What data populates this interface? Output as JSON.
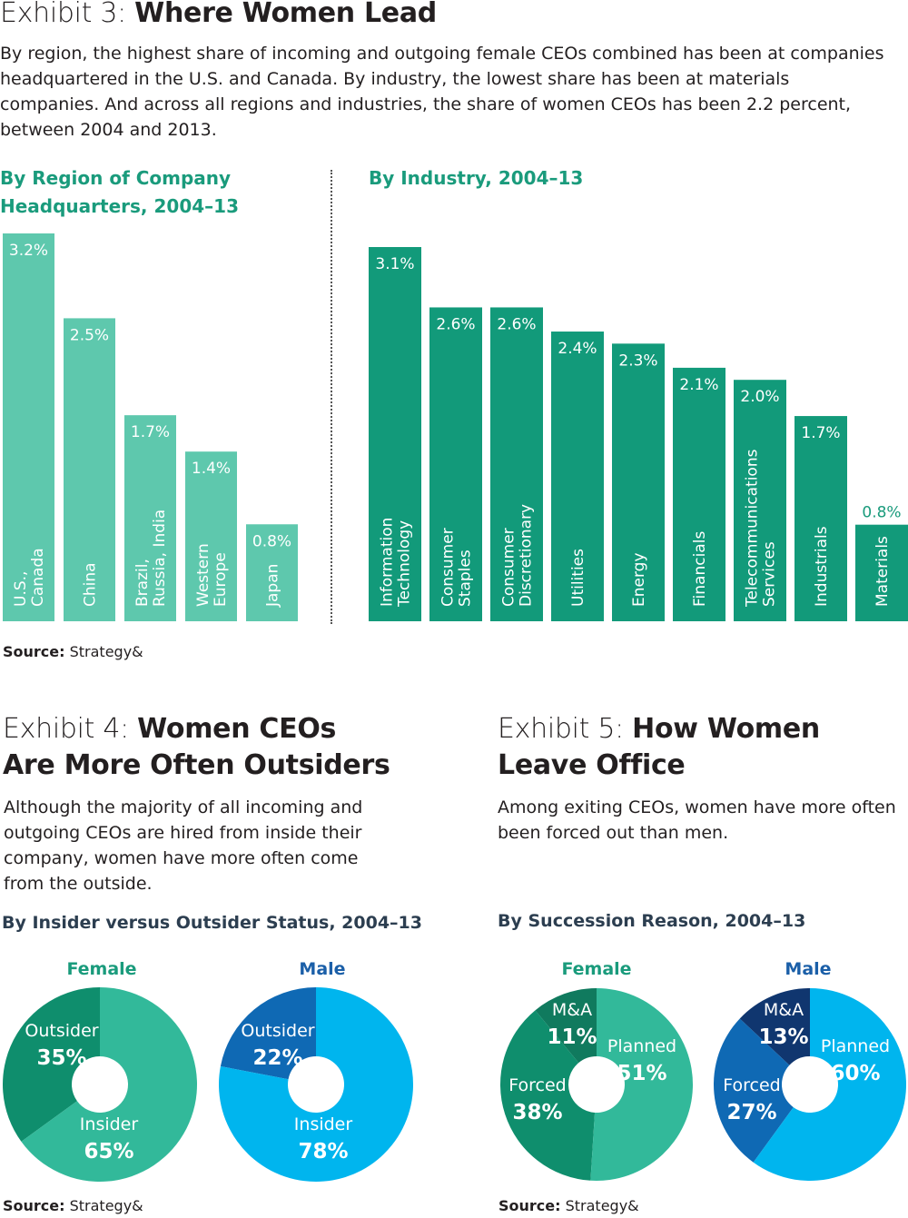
{
  "exhibit3": {
    "prefix": "Exhibit 3: ",
    "title": "Where Women Lead",
    "intro": "By region, the highest share of incoming and outgoing female CEOs combined has been at companies headquartered in the U.S. and Canada. By industry, the lowest share has been at materials companies. And across all regions and industries, the share of women CEOs has been 2.2 percent, between 2004 and 2013.",
    "source_label": "Source:",
    "source_value": " Strategy&"
  },
  "exhibit4": {
    "prefix": "Exhibit 4: ",
    "title_line1": "Women CEOs",
    "title_line2": "Are More Often Outsiders",
    "intro": "Although the majority of all incoming and outgoing CEOs are hired from inside their company, women have more often come from the outside.",
    "source_label": "Source:",
    "source_value": " Strategy&"
  },
  "exhibit5": {
    "prefix": "Exhibit 5: ",
    "title_line1": "How Women",
    "title_line2": "Leave Office",
    "intro": "Among exiting CEOs, women have more often been forced out than men.",
    "source_label": "Source:",
    "source_value": " Strategy&"
  },
  "colors": {
    "region_bar": "#5ec8ad",
    "industry_bar": "#129a7a",
    "female_dark": "#107a5e",
    "female_mid": "#0f8e6d",
    "female_light": "#32b99a",
    "male_navy": "#10366f",
    "male_blue": "#0f69b4",
    "male_light": "#00b5ee",
    "text_teal": "#1a9b7c",
    "text_blue": "#1b5fa8"
  },
  "chart_data": [
    {
      "type": "bar",
      "title_line1": "By Region of Company",
      "title_line2": "Headquarters, 2004–13",
      "categories": [
        [
          "U.S.,",
          "Canada"
        ],
        [
          "China"
        ],
        [
          "Brazil,",
          "Russia, India"
        ],
        [
          "Western",
          "Europe"
        ],
        [
          "Japan"
        ]
      ],
      "values": [
        3.2,
        2.5,
        1.7,
        1.4,
        0.8
      ],
      "value_labels": [
        "3.2%",
        "2.5%",
        "1.7%",
        "1.4%",
        "0.8%"
      ],
      "unit": "%",
      "ylim": [
        0,
        3.2
      ]
    },
    {
      "type": "bar",
      "title": "By Industry, 2004–13",
      "categories": [
        [
          "Information",
          "Technology"
        ],
        [
          "Consumer",
          "Staples"
        ],
        [
          "Consumer",
          "Discretionary"
        ],
        [
          "Utilities"
        ],
        [
          "Energy"
        ],
        [
          "Financials"
        ],
        [
          "Telecommunications",
          "Services"
        ],
        [
          "Industrials"
        ],
        [
          "Materials"
        ]
      ],
      "values": [
        3.1,
        2.6,
        2.6,
        2.4,
        2.3,
        2.1,
        2.0,
        1.7,
        0.8
      ],
      "value_labels": [
        "3.1%",
        "2.6%",
        "2.6%",
        "2.4%",
        "2.3%",
        "2.1%",
        "2.0%",
        "1.7%",
        "0.8%"
      ],
      "unit": "%",
      "ylim": [
        0,
        3.1
      ]
    },
    {
      "type": "pie",
      "title": "By Insider versus Outsider Status, 2004–13",
      "groups": [
        {
          "name": "Female",
          "slices": [
            {
              "label": "Outsider",
              "value": 35,
              "text": "35%"
            },
            {
              "label": "Insider",
              "value": 65,
              "text": "65%"
            }
          ]
        },
        {
          "name": "Male",
          "slices": [
            {
              "label": "Outsider",
              "value": 22,
              "text": "22%"
            },
            {
              "label": "Insider",
              "value": 78,
              "text": "78%"
            }
          ]
        }
      ]
    },
    {
      "type": "pie",
      "title": "By Succession Reason, 2004–13",
      "groups": [
        {
          "name": "Female",
          "slices": [
            {
              "label": "Planned",
              "value": 51,
              "text": "51%"
            },
            {
              "label": "Forced",
              "value": 38,
              "text": "38%"
            },
            {
              "label": "M&A",
              "value": 11,
              "text": "11%"
            }
          ]
        },
        {
          "name": "Male",
          "slices": [
            {
              "label": "Planned",
              "value": 60,
              "text": "60%"
            },
            {
              "label": "Forced",
              "value": 27,
              "text": "27%"
            },
            {
              "label": "M&A",
              "value": 13,
              "text": "13%"
            }
          ]
        }
      ]
    }
  ]
}
